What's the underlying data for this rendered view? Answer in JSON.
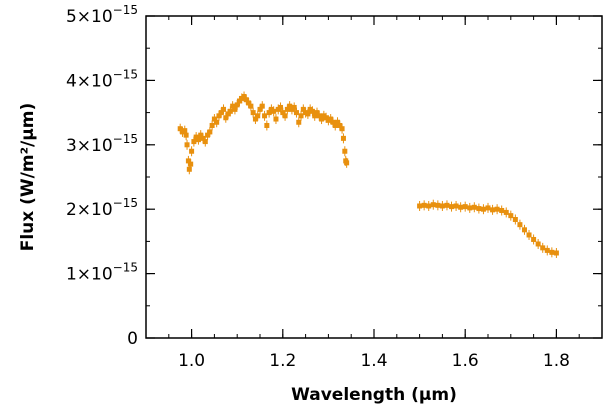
{
  "chart_data": {
    "type": "scatter",
    "title": "",
    "xlabel": "Wavelength (μm)",
    "ylabel": "Flux (W/m²/μm)",
    "xlim": [
      0.9,
      1.9
    ],
    "ylim": [
      0,
      5e-15
    ],
    "x_ticks": [
      {
        "value": 1.0,
        "label": "1.0"
      },
      {
        "value": 1.2,
        "label": "1.2"
      },
      {
        "value": 1.4,
        "label": "1.4"
      },
      {
        "value": 1.6,
        "label": "1.6"
      },
      {
        "value": 1.8,
        "label": "1.8"
      }
    ],
    "y_ticks": [
      {
        "value": 0,
        "mant": "0",
        "exp": ""
      },
      {
        "value": 1e-15,
        "mant": "1×10",
        "exp": "−15"
      },
      {
        "value": 2e-15,
        "mant": "2×10",
        "exp": "−15"
      },
      {
        "value": 3e-15,
        "mant": "3×10",
        "exp": "−15"
      },
      {
        "value": 4e-15,
        "mant": "4×10",
        "exp": "−15"
      },
      {
        "value": 5e-15,
        "mant": "5×10",
        "exp": "−15"
      }
    ],
    "grid": false,
    "legend": "none",
    "marker_color": "#e8900e",
    "series": [
      {
        "points": [
          [
            0.975,
            3.25e-15
          ],
          [
            0.98,
            3.2e-15
          ],
          [
            0.985,
            3.22e-15
          ],
          [
            0.988,
            3.15e-15
          ],
          [
            0.99,
            3e-15
          ],
          [
            0.993,
            2.75e-15
          ],
          [
            0.995,
            2.62e-15
          ],
          [
            0.998,
            2.7e-15
          ],
          [
            1.0,
            2.9e-15
          ],
          [
            1.005,
            3.05e-15
          ],
          [
            1.01,
            3.12e-15
          ],
          [
            1.015,
            3.08e-15
          ],
          [
            1.02,
            3.15e-15
          ],
          [
            1.025,
            3.1e-15
          ],
          [
            1.03,
            3.05e-15
          ],
          [
            1.035,
            3.15e-15
          ],
          [
            1.04,
            3.2e-15
          ],
          [
            1.045,
            3.3e-15
          ],
          [
            1.05,
            3.4e-15
          ],
          [
            1.055,
            3.35e-15
          ],
          [
            1.06,
            3.45e-15
          ],
          [
            1.065,
            3.5e-15
          ],
          [
            1.07,
            3.55e-15
          ],
          [
            1.075,
            3.42e-15
          ],
          [
            1.08,
            3.48e-15
          ],
          [
            1.085,
            3.52e-15
          ],
          [
            1.09,
            3.6e-15
          ],
          [
            1.095,
            3.55e-15
          ],
          [
            1.1,
            3.62e-15
          ],
          [
            1.105,
            3.68e-15
          ],
          [
            1.11,
            3.72e-15
          ],
          [
            1.115,
            3.75e-15
          ],
          [
            1.12,
            3.7e-15
          ],
          [
            1.125,
            3.65e-15
          ],
          [
            1.13,
            3.6e-15
          ],
          [
            1.135,
            3.5e-15
          ],
          [
            1.14,
            3.4e-15
          ],
          [
            1.145,
            3.45e-15
          ],
          [
            1.15,
            3.55e-15
          ],
          [
            1.155,
            3.6e-15
          ],
          [
            1.16,
            3.45e-15
          ],
          [
            1.165,
            3.3e-15
          ],
          [
            1.17,
            3.5e-15
          ],
          [
            1.175,
            3.55e-15
          ],
          [
            1.18,
            3.52e-15
          ],
          [
            1.185,
            3.4e-15
          ],
          [
            1.19,
            3.55e-15
          ],
          [
            1.195,
            3.58e-15
          ],
          [
            1.2,
            3.5e-15
          ],
          [
            1.205,
            3.45e-15
          ],
          [
            1.21,
            3.55e-15
          ],
          [
            1.215,
            3.6e-15
          ],
          [
            1.22,
            3.55e-15
          ],
          [
            1.225,
            3.58e-15
          ],
          [
            1.23,
            3.5e-15
          ],
          [
            1.235,
            3.35e-15
          ],
          [
            1.24,
            3.45e-15
          ],
          [
            1.245,
            3.55e-15
          ],
          [
            1.25,
            3.5e-15
          ],
          [
            1.255,
            3.48e-15
          ],
          [
            1.26,
            3.55e-15
          ],
          [
            1.265,
            3.52e-15
          ],
          [
            1.27,
            3.45e-15
          ],
          [
            1.275,
            3.5e-15
          ],
          [
            1.28,
            3.45e-15
          ],
          [
            1.285,
            3.4e-15
          ],
          [
            1.29,
            3.45e-15
          ],
          [
            1.295,
            3.42e-15
          ],
          [
            1.3,
            3.38e-15
          ],
          [
            1.305,
            3.4e-15
          ],
          [
            1.31,
            3.35e-15
          ],
          [
            1.315,
            3.3e-15
          ],
          [
            1.32,
            3.35e-15
          ],
          [
            1.325,
            3.3e-15
          ],
          [
            1.33,
            3.25e-15
          ],
          [
            1.333,
            3.1e-15
          ],
          [
            1.336,
            2.9e-15
          ],
          [
            1.338,
            2.75e-15
          ],
          [
            1.34,
            2.72e-15
          ],
          [
            1.5,
            2.05e-15
          ],
          [
            1.51,
            2.06e-15
          ],
          [
            1.52,
            2.05e-15
          ],
          [
            1.53,
            2.07e-15
          ],
          [
            1.54,
            2.06e-15
          ],
          [
            1.55,
            2.05e-15
          ],
          [
            1.56,
            2.06e-15
          ],
          [
            1.57,
            2.04e-15
          ],
          [
            1.58,
            2.05e-15
          ],
          [
            1.59,
            2.03e-15
          ],
          [
            1.6,
            2.04e-15
          ],
          [
            1.61,
            2.02e-15
          ],
          [
            1.62,
            2.03e-15
          ],
          [
            1.63,
            2.01e-15
          ],
          [
            1.64,
            2e-15
          ],
          [
            1.65,
            2.02e-15
          ],
          [
            1.66,
            1.99e-15
          ],
          [
            1.67,
            2e-15
          ],
          [
            1.68,
            1.98e-15
          ],
          [
            1.69,
            1.95e-15
          ],
          [
            1.7,
            1.9e-15
          ],
          [
            1.71,
            1.84e-15
          ],
          [
            1.72,
            1.76e-15
          ],
          [
            1.73,
            1.68e-15
          ],
          [
            1.74,
            1.6e-15
          ],
          [
            1.75,
            1.53e-15
          ],
          [
            1.76,
            1.46e-15
          ],
          [
            1.77,
            1.4e-15
          ],
          [
            1.78,
            1.36e-15
          ],
          [
            1.79,
            1.33e-15
          ],
          [
            1.8,
            1.32e-15
          ]
        ]
      }
    ]
  }
}
